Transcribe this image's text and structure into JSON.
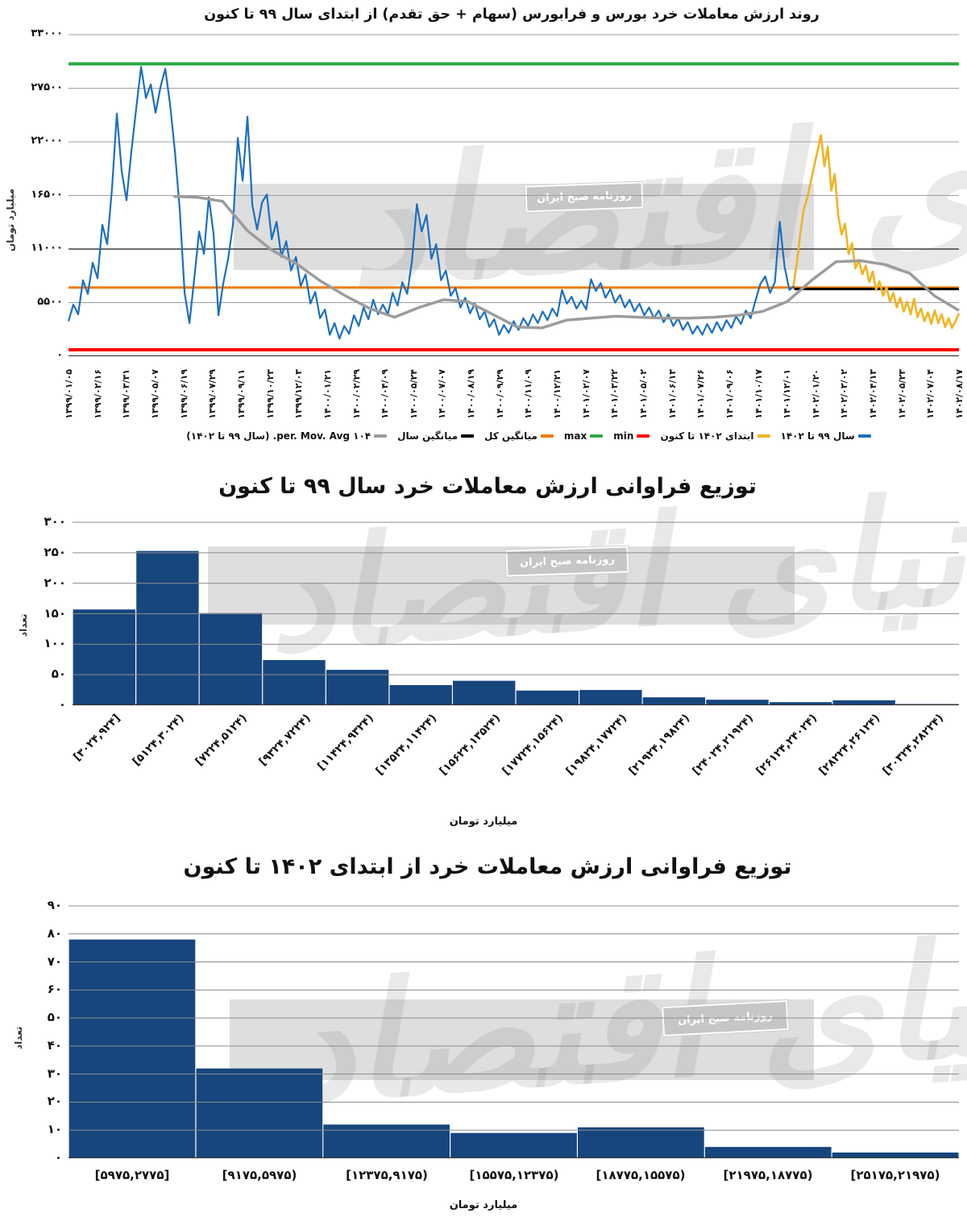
{
  "watermark": {
    "script_text": "دنیای اقتصاد",
    "small_box_text": "روزنامه صبح ایران",
    "band_color": "#dbdbdb"
  },
  "chart_data": [
    {
      "type": "line",
      "title": "روند ارزش معاملات خرد بورس و فرابورس (سهام + حق تقدم) از ابتدای سال ۹۹ تا کنون",
      "ylabel": "میلیارد تومان",
      "ylim": [
        0,
        33000
      ],
      "yticks": [
        0,
        5500,
        11000,
        16500,
        22000,
        27500,
        33000
      ],
      "ytick_labels": [
        "۰",
        "۵۵۰۰",
        "۱۱۰۰۰",
        "۱۶۵۰۰",
        "۲۲۰۰۰",
        "۲۷۵۰۰",
        "۳۳۰۰۰"
      ],
      "emphasized_gridline_value": 11000,
      "xtick_labels": [
        "۱۳۹۹/۰۱/۰۵",
        "۱۳۹۹/۰۲/۱۶",
        "۱۳۹۹/۰۳/۳۱",
        "۱۳۹۹/۰۵/۰۷",
        "۱۳۹۹/۰۶/۱۹",
        "۱۳۹۹/۰۷/۲۹",
        "۱۳۹۹/۰۹/۱۱",
        "۱۳۹۹/۱۰/۲۳",
        "۱۳۹۹/۱۲/۰۳",
        "۱۴۰۰/۰۱/۲۱",
        "۱۴۰۰/۰۲/۲۹",
        "۱۴۰۰/۰۴/۰۹",
        "۱۴۰۰/۰۵/۲۴",
        "۱۴۰۰/۰۷/۰۷",
        "۱۴۰۰/۰۸/۱۹",
        "۱۴۰۰/۰۹/۲۹",
        "۱۴۰۰/۱۱/۰۹",
        "۱۴۰۰/۱۲/۲۱",
        "۱۴۰۱/۰۲/۰۷",
        "۱۴۰۱/۰۳/۲۲",
        "۱۴۰۱/۰۵/۰۲",
        "۱۴۰۱/۰۶/۱۳",
        "۱۴۰۱/۰۷/۲۶",
        "۱۴۰۱/۰۹/۰۶",
        "۱۴۰۱/۱۰/۱۷",
        "۱۴۰۱/۱۲/۰۱",
        "۱۴۰۲/۰۱/۲۰",
        "۱۴۰۲/۰۳/۰۲",
        "۱۴۰۲/۰۴/۱۳",
        "۱۴۰۲/۰۵/۲۳",
        "۱۴۰۲/۰۷/۰۴",
        "۱۴۰۲/۰۸/۱۷"
      ],
      "series": [
        {
          "name": "سال ۹۹ تا ۱۴۰۲",
          "color": "#1C6FBF",
          "stroke_width": 2.2,
          "x_range": [
            0,
            0.815
          ],
          "values": [
            3600,
            5300,
            4300,
            7800,
            6400,
            9600,
            8000,
            13500,
            11500,
            17200,
            24900,
            19000,
            16000,
            21000,
            25500,
            29700,
            26500,
            27900,
            25000,
            27600,
            29500,
            25800,
            21000,
            15000,
            6500,
            3400,
            8000,
            12800,
            10500,
            16300,
            12500,
            4200,
            7500,
            10000,
            13500,
            22400,
            18000,
            24600,
            15500,
            13000,
            15800,
            16600,
            12000,
            13800,
            10200,
            11800,
            8800,
            10200,
            7200,
            8400,
            5400,
            6600,
            3900,
            4800,
            2200,
            3400,
            1800,
            3100,
            2300,
            4200,
            3100,
            5000,
            3800,
            5800,
            4300,
            5300,
            4300,
            6500,
            5200,
            7600,
            6400,
            9800,
            15600,
            12800,
            14500,
            10000,
            11500,
            7800,
            8800,
            6200,
            7000,
            5000,
            6000,
            4400,
            5400,
            3800,
            4600,
            3000,
            3800,
            2200,
            3200,
            2400,
            3600,
            2700,
            3900,
            3100,
            4300,
            3400,
            4600,
            3700,
            4900,
            4100,
            6800,
            5400,
            6100,
            4900,
            5700,
            4800,
            7900,
            6700,
            7500,
            6000,
            6900,
            5500,
            6300,
            5000,
            5800,
            4600,
            5400,
            4200,
            5000,
            3900,
            4700,
            3500,
            4300,
            3100,
            3900,
            2700,
            3500,
            2300,
            3100,
            2200,
            3300,
            2400,
            3500,
            2600,
            3700,
            2900,
            4100,
            3300,
            4700,
            3900,
            5700,
            7400,
            8200,
            6500,
            7600,
            13800,
            9200,
            6800,
            7200
          ]
        },
        {
          "name": "ابتدای ۱۴۰۲ تا کنون",
          "color": "#F0B323",
          "stroke_width": 2.6,
          "x_range": [
            0.814,
            1
          ],
          "values": [
            7200,
            9500,
            12500,
            15000,
            16200,
            17800,
            19500,
            21000,
            22700,
            19500,
            21500,
            17000,
            18700,
            14500,
            12500,
            13600,
            10500,
            11600,
            9000,
            9900,
            8400,
            9300,
            7600,
            8700,
            6800,
            7700,
            6200,
            7100,
            5600,
            6500,
            5000,
            6000,
            4600,
            5600,
            4300,
            5900,
            4000,
            4900,
            3600,
            4500,
            3300,
            4700,
            3400,
            4300,
            3000,
            3900,
            2900,
            3600,
            4400
          ]
        },
        {
          "name": "۱۰۴ per. Mov. Avg. (سال ۹۹ تا ۱۴۰۲)",
          "color": "#9C9C9C",
          "stroke_width": 3.5,
          "x_range": [
            0.118,
            1
          ],
          "values": [
            16400,
            16300,
            15900,
            12900,
            10900,
            9500,
            7700,
            6200,
            4900,
            4000,
            5000,
            5800,
            5600,
            4300,
            3000,
            2900,
            3700,
            3900,
            4100,
            4000,
            3900,
            3900,
            4000,
            4200,
            4600,
            5600,
            7800,
            9700,
            9800,
            9400,
            8500,
            6200,
            4700
          ]
        }
      ],
      "hlines": [
        {
          "name": "min",
          "value": 660,
          "color": "#FF0000",
          "width": 4,
          "x_range": [
            0,
            1
          ]
        },
        {
          "name": "max",
          "value": 30000,
          "color": "#2BAA44",
          "width": 4,
          "x_range": [
            0,
            1
          ]
        },
        {
          "name": "میانگین کل",
          "value": 7050,
          "color": "#F07D09",
          "width": 3,
          "x_range": [
            0,
            1
          ]
        },
        {
          "name": "میانگین سال",
          "value": 6900,
          "color": "#000000",
          "width": 3,
          "x_range": [
            0.815,
            1
          ]
        }
      ],
      "legend": [
        {
          "label": "سال ۹۹ تا ۱۴۰۲",
          "color": "#1C6FBF"
        },
        {
          "label": "ابتدای ۱۴۰۲ تا کنون",
          "color": "#F0B323"
        },
        {
          "label": "min",
          "color": "#FF0000"
        },
        {
          "label": "max",
          "color": "#2BAA44"
        },
        {
          "label": "میانگین کل",
          "color": "#F07D09"
        },
        {
          "label": "میانگین سال",
          "color": "#000000"
        },
        {
          "label": "۱۰۴ per. Mov. Avg. (سال ۹۹ تا ۱۴۰۲)",
          "color": "#9C9C9C"
        }
      ]
    },
    {
      "type": "bar",
      "title": "توزیع فراوانی ارزش معاملات خرد سال ۹۹ تا کنون",
      "ylabel": "تعداد",
      "xlabel": "میلیارد تومان",
      "ylim": [
        0,
        300
      ],
      "yticks": [
        0,
        50,
        100,
        150,
        200,
        250,
        300
      ],
      "ytick_labels": [
        "۰",
        "۵۰",
        "۱۰۰",
        "۱۵۰",
        "۲۰۰",
        "۲۵۰",
        "۳۰۰"
      ],
      "bar_color": "#17467E",
      "categories": [
        "[۳۰۲۴,۹۲۴]",
        "[۵۱۲۴,۳۰۲۴)",
        "[۷۲۲۴,۵۱۲۴)",
        "[۹۳۲۴,۷۲۲۴)",
        "[۱۱۴۲۴,۹۳۲۴)",
        "[۱۳۵۲۴,۱۱۴۲۴)",
        "[۱۵۶۲۴,۱۳۵۲۴)",
        "[۱۷۷۲۴,۱۵۶۲۴)",
        "[۱۹۸۲۴,۱۷۷۲۴)",
        "[۲۱۹۲۴,۱۹۸۲۴)",
        "[۲۴۰۲۴,۲۱۹۲۴)",
        "[۲۶۱۲۴,۲۴۰۲۴)",
        "[۲۸۲۲۴,۲۶۱۲۴)",
        "[۳۰۳۲۴,۲۸۲۲۴)"
      ],
      "values": [
        157,
        253,
        151,
        74,
        58,
        33,
        40,
        24,
        25,
        13,
        9,
        5,
        8,
        2
      ]
    },
    {
      "type": "bar",
      "title": "توزیع فراوانی ارزش معاملات خرد از ابتدای ۱۴۰۲ تا کنون",
      "ylabel": "تعداد",
      "xlabel": "میلیارد تومان",
      "ylim": [
        0,
        90
      ],
      "yticks": [
        0,
        10,
        20,
        30,
        40,
        50,
        60,
        70,
        80,
        90
      ],
      "ytick_labels": [
        "۰",
        "۱۰",
        "۲۰",
        "۳۰",
        "۴۰",
        "۵۰",
        "۶۰",
        "۷۰",
        "۸۰",
        "۹۰"
      ],
      "bar_color": "#17467E",
      "categories": [
        "[۵۹۷۵,۲۷۷۵]",
        "[۹۱۷۵,۵۹۷۵)",
        "[۱۲۳۷۵,۹۱۷۵)",
        "[۱۵۵۷۵,۱۲۳۷۵)",
        "[۱۸۷۷۵,۱۵۵۷۵)",
        "[۲۱۹۷۵,۱۸۷۷۵)",
        "[۲۵۱۷۵,۲۱۹۷۵)"
      ],
      "values": [
        78,
        32,
        12,
        9,
        11,
        4,
        2
      ]
    }
  ]
}
